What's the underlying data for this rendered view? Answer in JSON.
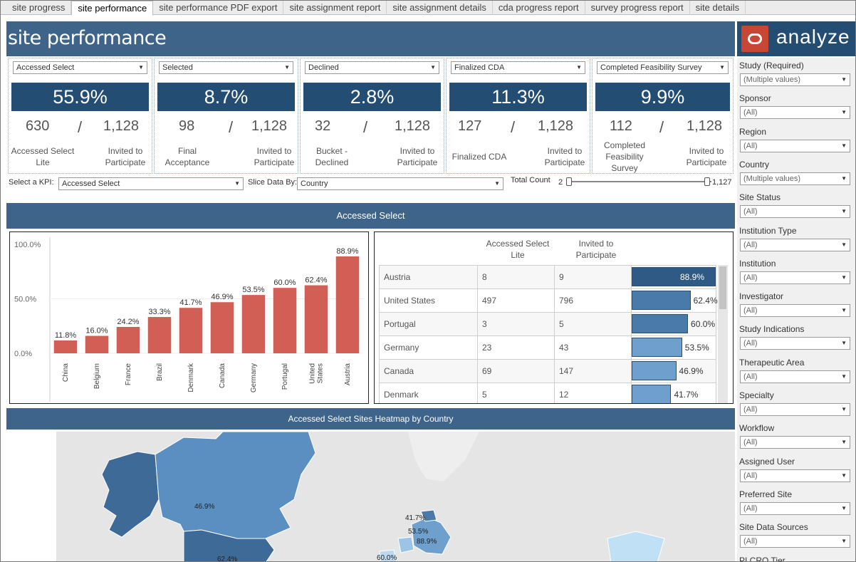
{
  "tabs": [
    "site progress",
    "site performance",
    "site performance PDF export",
    "site assignment report",
    "site assignment details",
    "cda progress report",
    "survey progress report",
    "site details"
  ],
  "active_tab": "site performance",
  "header": {
    "title": "site performance",
    "brand": "analyze"
  },
  "kpis": [
    {
      "dropdown": "Accessed Select",
      "pct": "55.9%",
      "num": "630",
      "den": "1,128",
      "num_label": "Accessed Select Lite",
      "den_label": "Invited to Participate"
    },
    {
      "dropdown": "Selected",
      "pct": "8.7%",
      "num": "98",
      "den": "1,128",
      "num_label": "Final Acceptance",
      "den_label": "Invited to Participate"
    },
    {
      "dropdown": "Declined",
      "pct": "2.8%",
      "num": "32",
      "den": "1,128",
      "num_label": "Bucket - Declined",
      "den_label": "Invited to Participate"
    },
    {
      "dropdown": "Finalized CDA",
      "pct": "11.3%",
      "num": "127",
      "den": "1,128",
      "num_label": "Finalized CDA",
      "den_label": "Invited to Participate"
    },
    {
      "dropdown": "Completed Feasibility Survey",
      "pct": "9.9%",
      "num": "112",
      "den": "1,128",
      "num_label": "Completed Feasibility Survey",
      "den_label": "Invited to Participate"
    }
  ],
  "controls": {
    "kpi_label": "Select a KPI:",
    "kpi_value": "Accessed Select",
    "slice_label": "Slice Data By:",
    "slice_value": "Country",
    "count_label": "Total Count",
    "count_min": "2",
    "count_max": "1,127"
  },
  "section_title": "Accessed Select",
  "map_title": "Accessed Select Sites Heatmap by Country",
  "chart_data": {
    "type": "bar",
    "categories": [
      "China",
      "Belgium",
      "France",
      "Brazil",
      "Denmark",
      "Canada",
      "Germany",
      "Portugal",
      "United States",
      "Austria"
    ],
    "values": [
      11.8,
      16.0,
      24.2,
      33.3,
      41.7,
      46.9,
      53.5,
      60.0,
      62.4,
      88.9
    ],
    "value_labels": [
      "11.8%",
      "16.0%",
      "24.2%",
      "33.3%",
      "41.7%",
      "46.9%",
      "53.5%",
      "60.0%",
      "62.4%",
      "88.9%"
    ],
    "ylim": [
      0,
      100
    ],
    "yticks": [
      "0.0%",
      "50.0%",
      "100.0%"
    ],
    "color": "#d15f55"
  },
  "table": {
    "headers": [
      "Accessed Select Lite",
      "Invited to Participate"
    ],
    "rows": [
      {
        "country": "Austria",
        "a": "8",
        "b": "9",
        "pct": "88.9%",
        "v": 88.9
      },
      {
        "country": "United States",
        "a": "497",
        "b": "796",
        "pct": "62.4%",
        "v": 62.4
      },
      {
        "country": "Portugal",
        "a": "3",
        "b": "5",
        "pct": "60.0%",
        "v": 60.0
      },
      {
        "country": "Germany",
        "a": "23",
        "b": "43",
        "pct": "53.5%",
        "v": 53.5
      },
      {
        "country": "Canada",
        "a": "69",
        "b": "147",
        "pct": "46.9%",
        "v": 46.9
      },
      {
        "country": "Denmark",
        "a": "5",
        "b": "12",
        "pct": "41.7%",
        "v": 41.7
      }
    ]
  },
  "map_labels": [
    "46.9%",
    "62.4%",
    "41.7%",
    "53.5%",
    "88.9%",
    "60.0%"
  ],
  "filters": [
    {
      "label": "Study (Required)",
      "value": "(Multiple values)"
    },
    {
      "label": "Sponsor",
      "value": "(All)"
    },
    {
      "label": "Region",
      "value": "(All)"
    },
    {
      "label": "Country",
      "value": "(Multiple values)"
    },
    {
      "label": "Site Status",
      "value": "(All)"
    },
    {
      "label": "Institution Type",
      "value": "(All)"
    },
    {
      "label": "Institution",
      "value": "(All)"
    },
    {
      "label": "Investigator",
      "value": "(All)"
    },
    {
      "label": "Study Indications",
      "value": "(All)"
    },
    {
      "label": "Therapeutic Area",
      "value": "(All)"
    },
    {
      "label": "Specialty",
      "value": "(All)"
    },
    {
      "label": "Workflow",
      "value": "(All)"
    },
    {
      "label": "Assigned User",
      "value": "(All)"
    },
    {
      "label": "Preferred Site",
      "value": "(All)"
    },
    {
      "label": "Site Data Sources",
      "value": "(All)"
    },
    {
      "label": "PI CRO Tier",
      "value": ""
    }
  ]
}
